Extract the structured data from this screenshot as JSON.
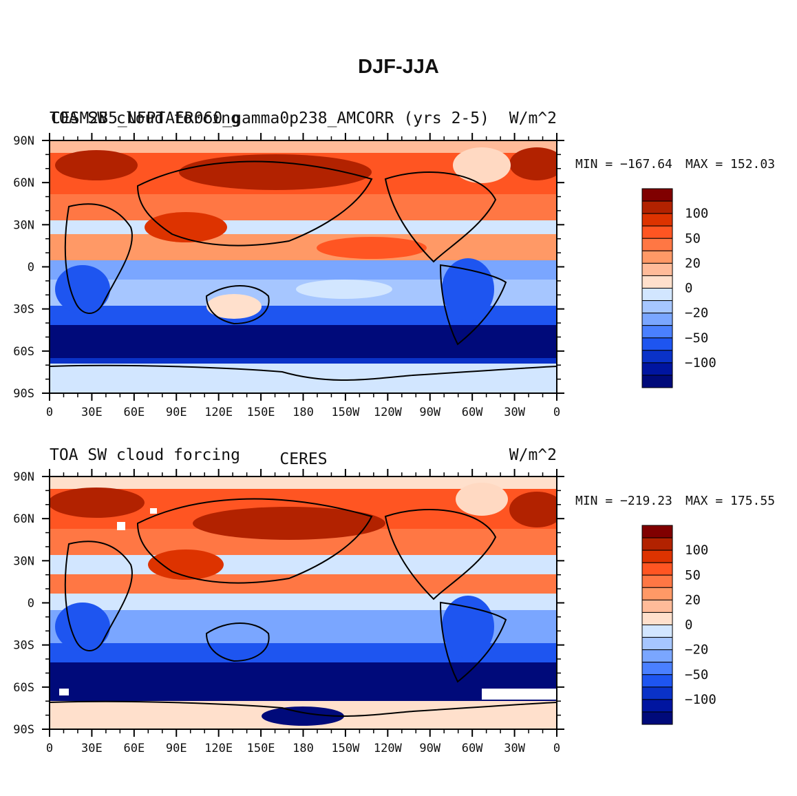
{
  "page_title": "DJF-JJA",
  "chart_data": [
    {
      "type": "heatmap",
      "left_title": "TOA SW cloud forcing",
      "left_title_overlap": "CESM2B5_NFPTAER060_gamma0p238_AMCORR (yrs 2-5)",
      "center_title": "",
      "units": "W/m^2",
      "min_label": "MIN = −167.64",
      "max_label": "MAX = 152.03",
      "min": -167.64,
      "max": 152.03,
      "x_ticks": [
        "0",
        "30E",
        "60E",
        "90E",
        "120E",
        "150E",
        "180",
        "150W",
        "120W",
        "90W",
        "60W",
        "30W",
        "0"
      ],
      "y_ticks": [
        "90N",
        "60N",
        "30N",
        "0",
        "30S",
        "60S",
        "90S"
      ],
      "xlim": [
        0,
        360
      ],
      "ylim": [
        -90,
        90
      ]
    },
    {
      "type": "heatmap",
      "left_title": "TOA SW cloud forcing",
      "center_title": "CERES",
      "units": "W/m^2",
      "min_label": "MIN = −219.23",
      "max_label": "MAX = 175.55",
      "min": -219.23,
      "max": 175.55,
      "x_ticks": [
        "0",
        "30E",
        "60E",
        "90E",
        "120E",
        "150E",
        "180",
        "150W",
        "120W",
        "90W",
        "60W",
        "30W",
        "0"
      ],
      "y_ticks": [
        "90N",
        "60N",
        "30N",
        "0",
        "30S",
        "60S",
        "90S"
      ],
      "xlim": [
        0,
        360
      ],
      "ylim": [
        -90,
        90
      ]
    }
  ],
  "colorbar": {
    "labels": [
      "100",
      "50",
      "20",
      "0",
      "−20",
      "−50",
      "−100"
    ],
    "colors": [
      "#800000",
      "#b22200",
      "#dd3300",
      "#ff5522",
      "#ff7744",
      "#ff9966",
      "#ffbb99",
      "#ffe0cc",
      "#d2e6ff",
      "#a6c6ff",
      "#7aa6ff",
      "#4a80ff",
      "#1e55f0",
      "#0a32c8",
      "#0015a0",
      "#000a7a"
    ]
  }
}
